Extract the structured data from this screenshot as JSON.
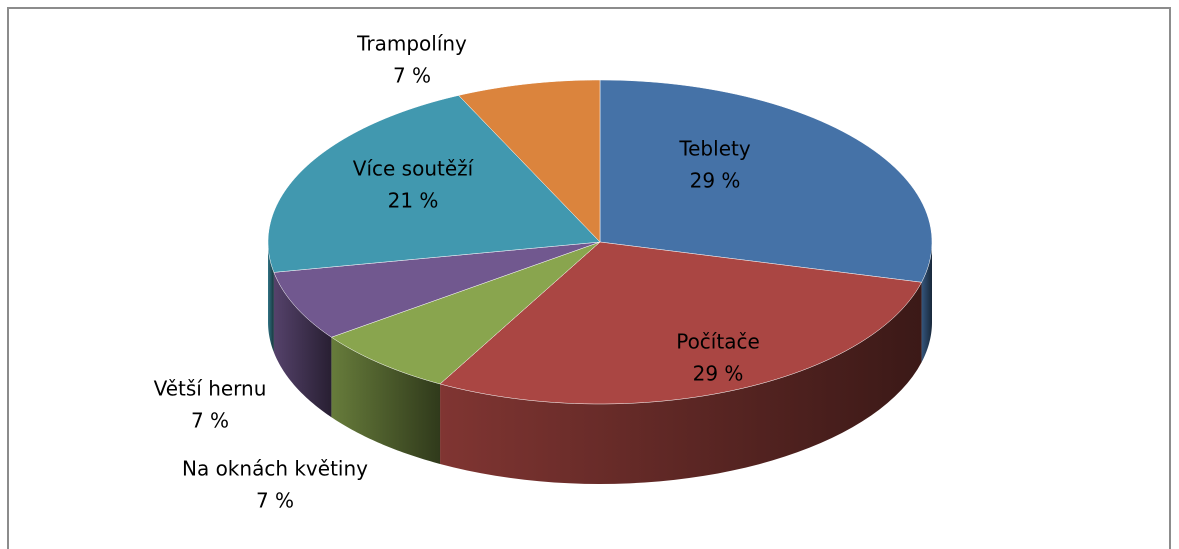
{
  "chart_data": {
    "type": "pie",
    "categories": [
      "Teblety",
      "Počítače",
      "Na oknách květiny",
      "Větší hernu",
      "Více soutěží",
      "Trampolíny"
    ],
    "values": [
      29,
      29,
      7,
      7,
      21,
      7
    ],
    "value_labels": [
      "29 %",
      "29 %",
      "7 %",
      "7 %",
      "21 %",
      "7 %"
    ],
    "colors": [
      "#4572a7",
      "#aa4643",
      "#89a54e",
      "#71588f",
      "#4198af",
      "#db843d"
    ]
  }
}
